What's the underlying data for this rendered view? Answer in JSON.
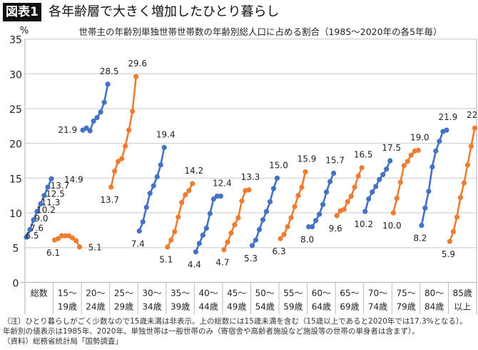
{
  "figure_label": "図表1",
  "title": "各年齢層で大きく増加したひとり暮らし",
  "notes": [
    "（注）ひとり暮らしがごく少数なので15歳未満は非表示。上の総数には15歳未満を含む（15歳以上であると2020年では17.3%となる）。",
    "年齢別の値表示は1985年、2020年。単独世帯は一般世帯のみ（寄宿舎や高齢者施設など施設等の世帯の単身者は含まず）。",
    "（資料）総務省統計局「国勢調査」"
  ],
  "chart_data": {
    "type": "line",
    "title": "世帯主の年齢別単独世帯世帯数の年齢別総人口に占める割合（1985〜2020年の各5年毎）",
    "ylabel": "%",
    "ylim": [
      0,
      35
    ],
    "yticks": [
      "0",
      "5",
      "10",
      "15",
      "20",
      "25",
      "30",
      "35"
    ],
    "grid": true,
    "years": [
      1985,
      1990,
      1995,
      2000,
      2005,
      2010,
      2015,
      2020
    ],
    "colors": {
      "blue": "#4472C4",
      "orange": "#ED7D31"
    },
    "categories": [
      {
        "label": [
          "総数",
          ""
        ],
        "color": "blue",
        "values": [
          6.5,
          7.6,
          9.0,
          10.2,
          11.3,
          12.5,
          13.7,
          14.9
        ],
        "labels": [
          "6.5",
          "7.6",
          "9.0",
          "10.2",
          "11.3",
          "12.5",
          "13.7",
          "14.9"
        ]
      },
      {
        "label": [
          "15〜",
          "19歳"
        ],
        "color": "orange",
        "values": [
          6.1,
          6.3,
          6.7,
          6.7,
          6.7,
          6.4,
          6.0,
          5.1
        ],
        "labels": [
          "6.1",
          "5.1"
        ]
      },
      {
        "label": [
          "20〜",
          "24歳"
        ],
        "color": "blue",
        "values": [
          21.9,
          22.2,
          21.8,
          23.2,
          23.7,
          24.5,
          25.9,
          28.5
        ],
        "labels": [
          "21.9",
          "28.5"
        ]
      },
      {
        "label": [
          "25〜",
          "29歳"
        ],
        "color": "orange",
        "values": [
          13.7,
          16.0,
          17.4,
          17.8,
          19.6,
          21.9,
          24.6,
          29.6
        ],
        "labels": [
          "13.7",
          "29.6"
        ]
      },
      {
        "label": [
          "30〜",
          "34歳"
        ],
        "color": "blue",
        "values": [
          7.4,
          8.7,
          10.8,
          12.8,
          13.9,
          15.2,
          16.9,
          19.4
        ],
        "labels": [
          "7.4",
          "19.4"
        ]
      },
      {
        "label": [
          "35〜",
          "39歳"
        ],
        "color": "orange",
        "values": [
          5.1,
          6.1,
          7.3,
          9.4,
          11.5,
          12.6,
          13.2,
          14.2
        ],
        "labels": [
          "5.1",
          "14.2"
        ]
      },
      {
        "label": [
          "40〜",
          "44歳"
        ],
        "color": "blue",
        "values": [
          4.4,
          5.6,
          6.8,
          7.8,
          9.9,
          12.0,
          12.4,
          12.4
        ],
        "labels": [
          "4.4",
          "12.4"
        ]
      },
      {
        "label": [
          "45〜",
          "49歳"
        ],
        "color": "orange",
        "values": [
          4.7,
          5.8,
          7.1,
          8.3,
          9.3,
          11.7,
          13.2,
          13.3
        ],
        "labels": [
          "4.7",
          "13.3"
        ]
      },
      {
        "label": [
          "50〜",
          "54歳"
        ],
        "color": "blue",
        "values": [
          5.3,
          6.1,
          7.6,
          9.0,
          10.2,
          11.6,
          13.5,
          15.0
        ],
        "labels": [
          "5.3",
          "15.0"
        ]
      },
      {
        "label": [
          "55〜",
          "59歳"
        ],
        "color": "orange",
        "values": [
          6.3,
          6.9,
          8.0,
          9.3,
          10.9,
          12.5,
          13.7,
          15.9
        ],
        "labels": [
          "6.3",
          "15.9"
        ]
      },
      {
        "label": [
          "60〜",
          "64歳"
        ],
        "color": "blue",
        "values": [
          8.0,
          8.0,
          8.9,
          9.8,
          11.2,
          13.0,
          14.5,
          15.7
        ],
        "labels": [
          "8.0",
          "15.7"
        ]
      },
      {
        "label": [
          "65〜",
          "69歳"
        ],
        "color": "orange",
        "values": [
          9.6,
          10.3,
          10.5,
          11.6,
          12.4,
          13.7,
          15.3,
          16.5
        ],
        "labels": [
          "9.6",
          "16.5"
        ]
      },
      {
        "label": [
          "70〜",
          "74歳"
        ],
        "color": "blue",
        "values": [
          10.2,
          12.0,
          13.0,
          13.8,
          14.8,
          15.5,
          16.3,
          17.5
        ],
        "labels": [
          "10.2",
          "17.5"
        ]
      },
      {
        "label": [
          "75〜",
          "79歳"
        ],
        "color": "orange",
        "values": [
          10.0,
          12.1,
          14.4,
          16.8,
          17.4,
          18.3,
          18.9,
          19.0
        ],
        "labels": [
          "10.0",
          "19.0"
        ]
      },
      {
        "label": [
          "80〜",
          "84歳"
        ],
        "color": "blue",
        "values": [
          8.2,
          10.7,
          13.1,
          16.6,
          18.9,
          20.3,
          21.7,
          21.9
        ],
        "labels": [
          "8.2",
          "21.9"
        ]
      },
      {
        "label": [
          "85歳",
          "以上"
        ],
        "color": "orange",
        "values": [
          5.9,
          7.3,
          9.4,
          12.2,
          14.3,
          16.9,
          19.6,
          22.2
        ],
        "labels": [
          "5.9",
          "22.2"
        ]
      }
    ]
  }
}
